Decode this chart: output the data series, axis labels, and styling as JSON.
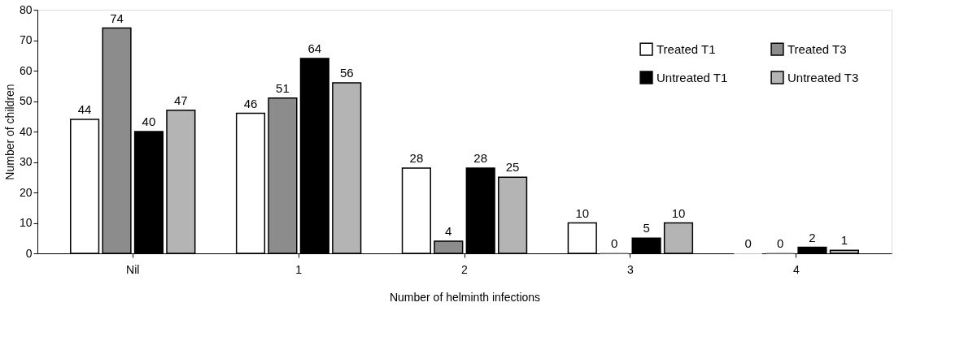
{
  "chart_data": {
    "type": "bar",
    "xlabel": "Number of helminth infections",
    "ylabel": "Number of children",
    "categories": [
      "Nil",
      "1",
      "2",
      "3",
      "4"
    ],
    "series": [
      {
        "name": "Treated T1",
        "color": "#ffffff",
        "values": [
          44,
          46,
          28,
          10,
          0
        ]
      },
      {
        "name": "Treated T3",
        "color": "#8c8c8c",
        "values": [
          74,
          51,
          4,
          0,
          0
        ]
      },
      {
        "name": "Untreated T1",
        "color": "#000000",
        "values": [
          40,
          64,
          28,
          5,
          2
        ]
      },
      {
        "name": "Untreated T3",
        "color": "#b4b4b4",
        "values": [
          47,
          56,
          25,
          10,
          1
        ]
      }
    ],
    "ylim": [
      0,
      80
    ],
    "yticks": [
      0,
      10,
      20,
      30,
      40,
      50,
      60,
      70,
      80
    ],
    "grid": false,
    "legend": "top right",
    "data_labels": true
  }
}
